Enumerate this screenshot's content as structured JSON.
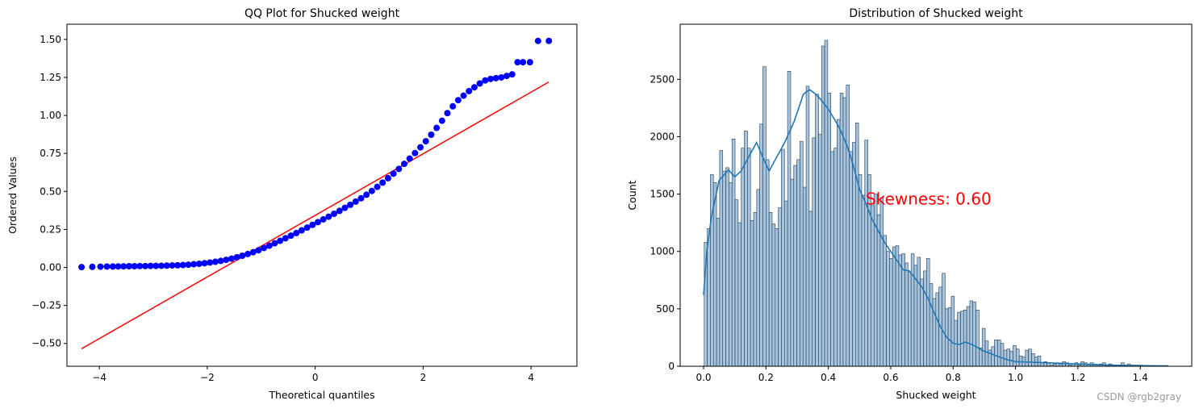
{
  "chart_data": [
    {
      "type": "scatter",
      "title": "QQ Plot for Shucked weight",
      "xlabel": "Theoretical quantiles",
      "ylabel": "Ordered Values",
      "xlim": [
        -4.6,
        4.85
      ],
      "ylim": [
        -0.65,
        1.6
      ],
      "xticks": [
        -4,
        -2,
        0,
        2,
        4
      ],
      "xtick_labels": [
        "−4",
        "−2",
        "0",
        "2",
        "4"
      ],
      "yticks": [
        -0.5,
        -0.25,
        0.0,
        0.25,
        0.5,
        0.75,
        1.0,
        1.25,
        1.5
      ],
      "ytick_labels": [
        "−0.50",
        "−0.25",
        "0.00",
        "0.25",
        "0.50",
        "0.75",
        "1.00",
        "1.25",
        "1.50"
      ],
      "grid": false,
      "marker_color": "#0000ff",
      "line_color": "#ff0000",
      "fit_line": {
        "x": [
          -4.33,
          4.33
        ],
        "y": [
          -0.535,
          1.22
        ]
      },
      "series": [
        {
          "x": [
            -4.33,
            -4.13,
            -3.98,
            -3.86,
            -3.75,
            -3.65,
            -3.55,
            -3.45,
            -3.35,
            -3.25,
            -3.15,
            -3.05,
            -2.95,
            -2.85,
            -2.75,
            -2.65,
            -2.55,
            -2.45,
            -2.35,
            -2.25,
            -2.15,
            -2.05,
            -1.95,
            -1.85,
            -1.75,
            -1.65,
            -1.55,
            -1.45,
            -1.35,
            -1.25,
            -1.15,
            -1.05,
            -0.95,
            -0.85,
            -0.75,
            -0.65,
            -0.55,
            -0.45,
            -0.35,
            -0.25,
            -0.15,
            -0.05,
            0.05,
            0.15,
            0.25,
            0.35,
            0.45,
            0.55,
            0.65,
            0.75,
            0.85,
            0.95,
            1.05,
            1.15,
            1.25,
            1.35,
            1.45,
            1.55,
            1.65,
            1.75,
            1.85,
            1.95,
            2.05,
            2.15,
            2.25,
            2.35,
            2.45,
            2.55,
            2.65,
            2.75,
            2.85,
            2.95,
            3.05,
            3.15,
            3.25,
            3.35,
            3.45,
            3.55,
            3.65,
            3.75,
            3.85,
            3.98,
            4.13,
            4.33
          ],
          "y": [
            0.002,
            0.004,
            0.005,
            0.006,
            0.006,
            0.007,
            0.007,
            0.008,
            0.008,
            0.009,
            0.009,
            0.01,
            0.01,
            0.011,
            0.012,
            0.013,
            0.014,
            0.016,
            0.018,
            0.021,
            0.024,
            0.028,
            0.032,
            0.037,
            0.043,
            0.05,
            0.058,
            0.067,
            0.077,
            0.088,
            0.1,
            0.113,
            0.128,
            0.143,
            0.159,
            0.175,
            0.192,
            0.209,
            0.226,
            0.244,
            0.262,
            0.28,
            0.298,
            0.316,
            0.334,
            0.353,
            0.372,
            0.392,
            0.412,
            0.433,
            0.455,
            0.478,
            0.503,
            0.53,
            0.558,
            0.587,
            0.617,
            0.648,
            0.681,
            0.716,
            0.752,
            0.79,
            0.83,
            0.873,
            0.918,
            0.965,
            1.015,
            1.06,
            1.1,
            1.13,
            1.16,
            1.185,
            1.21,
            1.23,
            1.24,
            1.245,
            1.25,
            1.26,
            1.27,
            1.35,
            1.35,
            1.35,
            1.49,
            1.49
          ]
        }
      ]
    },
    {
      "type": "bar",
      "title": "Distribution of Shucked weight",
      "xlabel": "Shucked weight",
      "ylabel": "Count",
      "xlim": [
        -0.075,
        1.565
      ],
      "ylim": [
        0,
        2980
      ],
      "xticks": [
        0.0,
        0.2,
        0.4,
        0.6,
        0.8,
        1.0,
        1.2,
        1.4
      ],
      "xtick_labels": [
        "0.0",
        "0.2",
        "0.4",
        "0.6",
        "0.8",
        "1.0",
        "1.2",
        "1.4"
      ],
      "yticks": [
        0,
        500,
        1000,
        1500,
        2000,
        2500
      ],
      "ytick_labels": [
        "0",
        "500",
        "1000",
        "1500",
        "2000",
        "2500"
      ],
      "grid": false,
      "bin_start": 0.002,
      "bin_width": 0.0099,
      "bar_color": "#a9c5de",
      "bar_edge_color": "#1f3d57",
      "kde_color": "#1f77b4",
      "values": [
        1080,
        1200,
        1670,
        1600,
        1290,
        1880,
        1700,
        1730,
        1600,
        1980,
        1450,
        1250,
        1900,
        2050,
        1900,
        1270,
        1340,
        1540,
        2110,
        2610,
        1800,
        1340,
        1240,
        1200,
        1380,
        1890,
        1440,
        2570,
        1630,
        1750,
        1800,
        1960,
        1560,
        2440,
        1350,
        1990,
        2370,
        2020,
        2790,
        2840,
        2380,
        1870,
        1900,
        2150,
        2380,
        2340,
        2450,
        1870,
        1950,
        2120,
        1670,
        1490,
        1970,
        1670,
        1400,
        1500,
        1320,
        1470,
        1140,
        1000,
        940,
        1040,
        1050,
        970,
        980,
        900,
        820,
        980,
        880,
        950,
        760,
        830,
        940,
        720,
        590,
        640,
        690,
        810,
        500,
        510,
        610,
        400,
        470,
        480,
        490,
        520,
        570,
        560,
        490,
        160,
        330,
        220,
        140,
        170,
        230,
        230,
        200,
        140,
        150,
        130,
        180,
        150,
        90,
        80,
        140,
        150,
        110,
        80,
        90,
        30,
        40,
        30,
        10,
        20,
        30,
        20,
        40,
        30,
        10,
        20,
        30,
        10,
        40,
        30,
        20,
        30,
        20,
        10,
        20,
        30,
        10,
        20,
        10,
        10,
        10,
        30,
        10,
        20,
        10,
        10,
        10,
        10,
        5,
        5,
        5,
        5,
        5,
        5,
        5,
        5
      ],
      "kde": {
        "x": [
          0.0,
          0.01,
          0.025,
          0.05,
          0.08,
          0.1,
          0.12,
          0.14,
          0.17,
          0.19,
          0.21,
          0.23,
          0.26,
          0.29,
          0.32,
          0.34,
          0.36,
          0.38,
          0.4,
          0.42,
          0.44,
          0.46,
          0.48,
          0.5,
          0.52,
          0.54,
          0.56,
          0.58,
          0.6,
          0.62,
          0.64,
          0.66,
          0.68,
          0.7,
          0.72,
          0.74,
          0.76,
          0.78,
          0.8,
          0.82,
          0.84,
          0.86,
          0.88,
          0.9,
          0.92,
          0.94,
          0.97,
          1.0,
          1.05,
          1.1,
          1.2,
          1.3,
          1.4,
          1.49
        ],
        "y": [
          620,
          1000,
          1300,
          1620,
          1710,
          1650,
          1700,
          1800,
          1950,
          1820,
          1700,
          1800,
          1950,
          2130,
          2370,
          2410,
          2370,
          2310,
          2240,
          2150,
          2050,
          1920,
          1750,
          1540,
          1420,
          1280,
          1180,
          1080,
          1000,
          920,
          840,
          830,
          760,
          690,
          590,
          460,
          340,
          250,
          200,
          190,
          210,
          190,
          160,
          130,
          110,
          90,
          60,
          40,
          35,
          30,
          20,
          10,
          5,
          3
        ]
      },
      "annotation": {
        "text": "Skewness: 0.60",
        "x": 0.52,
        "y": 1460,
        "color": "#ff0000"
      }
    }
  ],
  "watermark": "CSDN @rgb2gray"
}
